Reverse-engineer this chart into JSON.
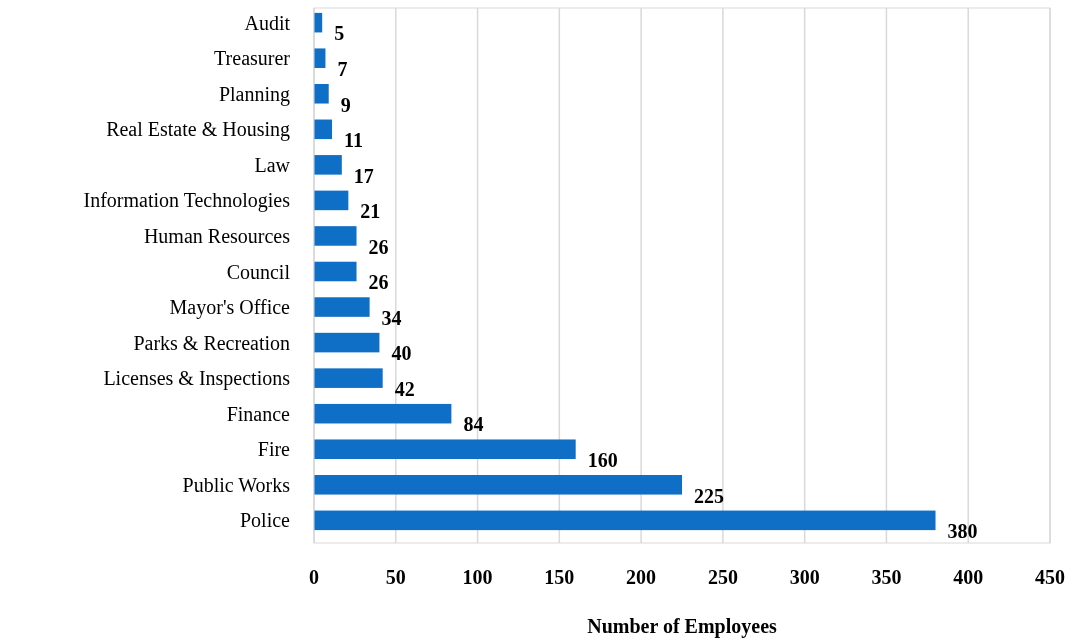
{
  "chart_data": {
    "type": "bar",
    "orientation": "horizontal",
    "xlabel": "Number of Employees",
    "categories": [
      "Audit",
      "Treasurer",
      "Planning",
      "Real Estate & Housing",
      "Law",
      "Information Technologies",
      "Human Resources",
      "Council",
      "Mayor's Office",
      "Parks & Recreation",
      "Licenses & Inspections",
      "Finance",
      "Fire",
      "Public Works",
      "Police"
    ],
    "values": [
      5,
      7,
      9,
      11,
      17,
      21,
      26,
      26,
      34,
      40,
      42,
      84,
      160,
      225,
      380
    ],
    "color": "#0f6fc6",
    "xlim": [
      0,
      450
    ],
    "xticks": [
      0,
      50,
      100,
      150,
      200,
      250,
      300,
      350,
      400,
      450
    ],
    "grid": "x",
    "data_labels": true
  }
}
